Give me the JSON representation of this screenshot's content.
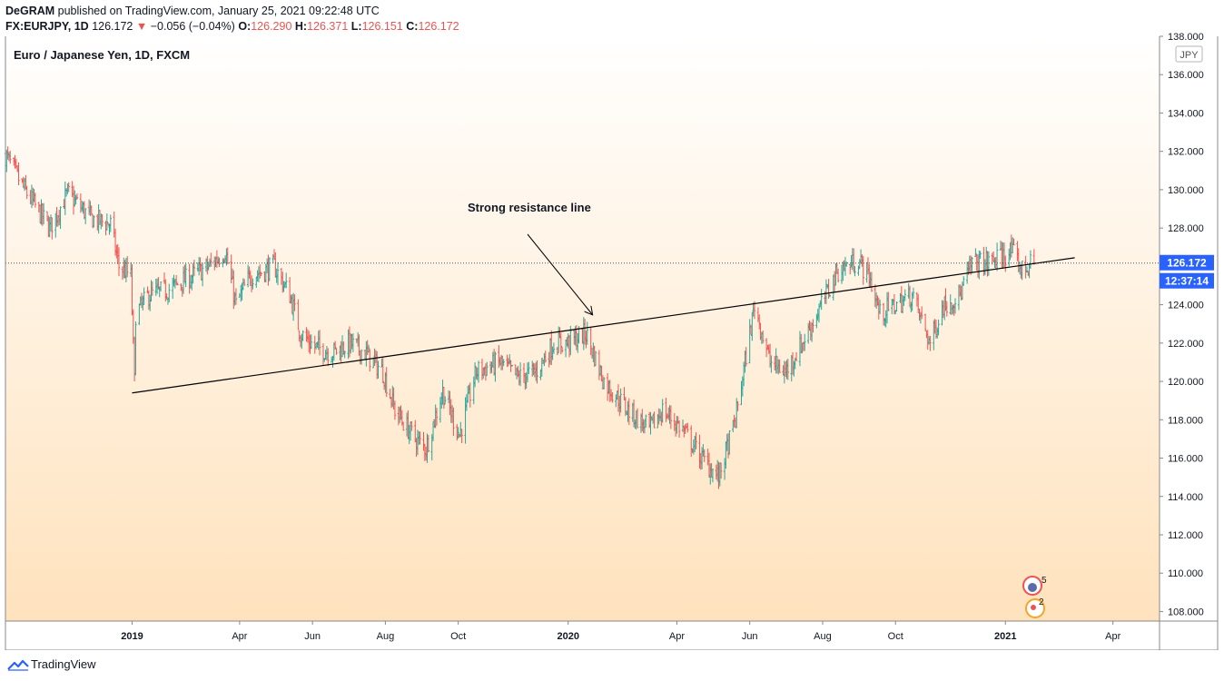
{
  "header": {
    "publisher": "DeGRAM",
    "published_text": "published on TradingView.com, January 25, 2021 09:22:48 UTC",
    "symbol": "FX:EURJPY, 1D",
    "last_price": "126.172",
    "change_arrow": "▼",
    "change": "−0.056 (−0.04%)",
    "open_label": "O:",
    "open": "126.290",
    "high_label": "H:",
    "high": "126.371",
    "low_label": "L:",
    "low": "126.151",
    "close_label": "C:",
    "close": "126.172"
  },
  "chart_data": {
    "type": "ohlc-bar",
    "title": "Euro / Japanese Yen, 1D, FXCM",
    "currency_badge": "JPY",
    "ylim": [
      107.5,
      138.0
    ],
    "y_ticks": [
      "108.000",
      "110.000",
      "112.000",
      "114.000",
      "116.000",
      "118.000",
      "120.000",
      "122.000",
      "124.000",
      "126.000",
      "128.000",
      "130.000",
      "132.000",
      "134.000",
      "136.000",
      "138.000"
    ],
    "x_ticks": [
      {
        "label": "2019",
        "date": "2019-01-01",
        "bold": true
      },
      {
        "label": "Apr",
        "date": "2019-04-01"
      },
      {
        "label": "Jun",
        "date": "2019-06-01"
      },
      {
        "label": "Aug",
        "date": "2019-08-01"
      },
      {
        "label": "Oct",
        "date": "2019-10-01"
      },
      {
        "label": "2020",
        "date": "2020-01-01",
        "bold": true
      },
      {
        "label": "Apr",
        "date": "2020-04-01"
      },
      {
        "label": "Jun",
        "date": "2020-06-01"
      },
      {
        "label": "Aug",
        "date": "2020-08-01"
      },
      {
        "label": "Oct",
        "date": "2020-10-01"
      },
      {
        "label": "2021",
        "date": "2021-01-01",
        "bold": true
      },
      {
        "label": "Apr",
        "date": "2021-04-01"
      }
    ],
    "x_range": [
      "2018-09-17",
      "2021-05-10"
    ],
    "price_path": [
      [
        "2018-09-17",
        131.8
      ],
      [
        "2018-10-03",
        130.0
      ],
      [
        "2018-10-24",
        128.0
      ],
      [
        "2018-11-08",
        129.8
      ],
      [
        "2018-11-28",
        128.5
      ],
      [
        "2018-12-14",
        128.2
      ],
      [
        "2018-12-21",
        126.0
      ],
      [
        "2018-12-31",
        125.5
      ],
      [
        "2019-01-03",
        120.0
      ],
      [
        "2019-01-04",
        123.5
      ],
      [
        "2019-01-15",
        124.5
      ],
      [
        "2019-02-01",
        124.8
      ],
      [
        "2019-02-20",
        125.5
      ],
      [
        "2019-03-06",
        126.0
      ],
      [
        "2019-03-20",
        126.8
      ],
      [
        "2019-03-29",
        124.0
      ],
      [
        "2019-04-10",
        125.5
      ],
      [
        "2019-04-30",
        126.0
      ],
      [
        "2019-05-13",
        124.5
      ],
      [
        "2019-05-22",
        122.5
      ],
      [
        "2019-06-03",
        121.8
      ],
      [
        "2019-06-18",
        121.5
      ],
      [
        "2019-07-02",
        122.0
      ],
      [
        "2019-07-15",
        121.5
      ],
      [
        "2019-07-30",
        120.5
      ],
      [
        "2019-08-09",
        118.5
      ],
      [
        "2019-08-26",
        117.0
      ],
      [
        "2019-09-04",
        116.5
      ],
      [
        "2019-09-18",
        119.5
      ],
      [
        "2019-10-02",
        117.2
      ],
      [
        "2019-10-16",
        120.5
      ],
      [
        "2019-11-05",
        121.0
      ],
      [
        "2019-11-20",
        120.2
      ],
      [
        "2019-12-05",
        120.5
      ],
      [
        "2019-12-20",
        122.0
      ],
      [
        "2019-12-31",
        122.0
      ],
      [
        "2020-01-16",
        122.5
      ],
      [
        "2020-01-31",
        120.0
      ],
      [
        "2020-02-20",
        118.5
      ],
      [
        "2020-03-09",
        117.5
      ],
      [
        "2020-03-20",
        118.5
      ],
      [
        "2020-04-06",
        117.5
      ],
      [
        "2020-04-22",
        116.0
      ],
      [
        "2020-05-06",
        115.0
      ],
      [
        "2020-05-20",
        118.0
      ],
      [
        "2020-06-05",
        124.0
      ],
      [
        "2020-06-18",
        121.0
      ],
      [
        "2020-07-01",
        120.5
      ],
      [
        "2020-07-15",
        122.0
      ],
      [
        "2020-07-31",
        124.0
      ],
      [
        "2020-08-14",
        125.8
      ],
      [
        "2020-08-31",
        126.3
      ],
      [
        "2020-09-09",
        125.5
      ],
      [
        "2020-09-18",
        123.5
      ],
      [
        "2020-10-01",
        124.0
      ],
      [
        "2020-10-15",
        124.5
      ],
      [
        "2020-10-30",
        122.0
      ],
      [
        "2020-11-10",
        124.0
      ],
      [
        "2020-11-24",
        124.5
      ],
      [
        "2020-12-04",
        126.2
      ],
      [
        "2020-12-18",
        126.2
      ],
      [
        "2021-01-06",
        126.8
      ],
      [
        "2021-01-15",
        125.8
      ],
      [
        "2021-01-25",
        126.17
      ]
    ],
    "current_price_label": "126.172",
    "countdown_label": "12:37:14",
    "trendline": {
      "start": [
        "2019-01-01",
        119.4
      ],
      "end": [
        "2021-02-28",
        126.45
      ]
    },
    "annotation": {
      "text": "Strong resistance line"
    },
    "event_badges": [
      "5",
      "2"
    ],
    "colors": {
      "up": "#26a69a",
      "down": "#ef5350",
      "axis_text": "#131722",
      "price_badge": "#2962ff",
      "line": "#000000"
    }
  },
  "footer": {
    "brand": "TradingView"
  }
}
